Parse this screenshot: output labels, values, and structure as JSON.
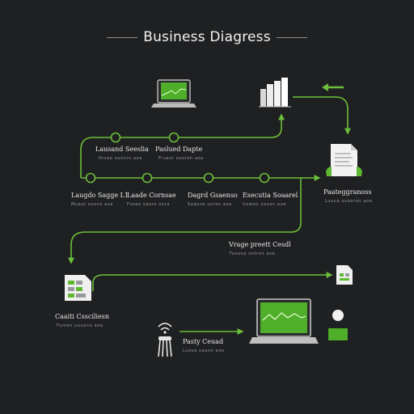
{
  "title": "Business Diagress",
  "nodes": {
    "top_left": {
      "label": "Lausand Seeslia",
      "sub": "Hrsao  ouonro  aoa"
    },
    "top_right": {
      "label": "Paslued Dapte",
      "sub": "Fruaor  ouoroh  aoa"
    },
    "mid_1": {
      "label": "Laugdo Sagge L1",
      "sub": "Muaut  ouons  ava"
    },
    "mid_2": {
      "label": "Laade Cornsae",
      "sub": "Fsoao  oaoro  oara"
    },
    "mid_3": {
      "label": "Dagrd Gsaenso",
      "sub": "Saqooe  uoron  aoe"
    },
    "mid_4": {
      "label": "Esecutia Soaarel",
      "sub": "Uuwoo  uaoon  aue"
    },
    "right_doc": {
      "label": "Paateggranoss",
      "sub": "Luuua  oueoron  aoa"
    },
    "center_low": {
      "label": "Vrage preett Cesdl",
      "sub": "Faousa  uotron  aoe"
    },
    "left_low": {
      "label": "Caaiti Cssciliesn",
      "sub": "Fumon  uuuono  aoa"
    },
    "wifi_node": {
      "label": "Pasty Ceuad",
      "sub": "Lsoua  uouon  aoe"
    }
  },
  "colors": {
    "background": "#1f2022",
    "accent": "#5fb830",
    "accent_dark": "#3d7d1d",
    "line": "#6bbf3a",
    "text": "#e9e9e9",
    "muted": "#9a9a9a"
  }
}
